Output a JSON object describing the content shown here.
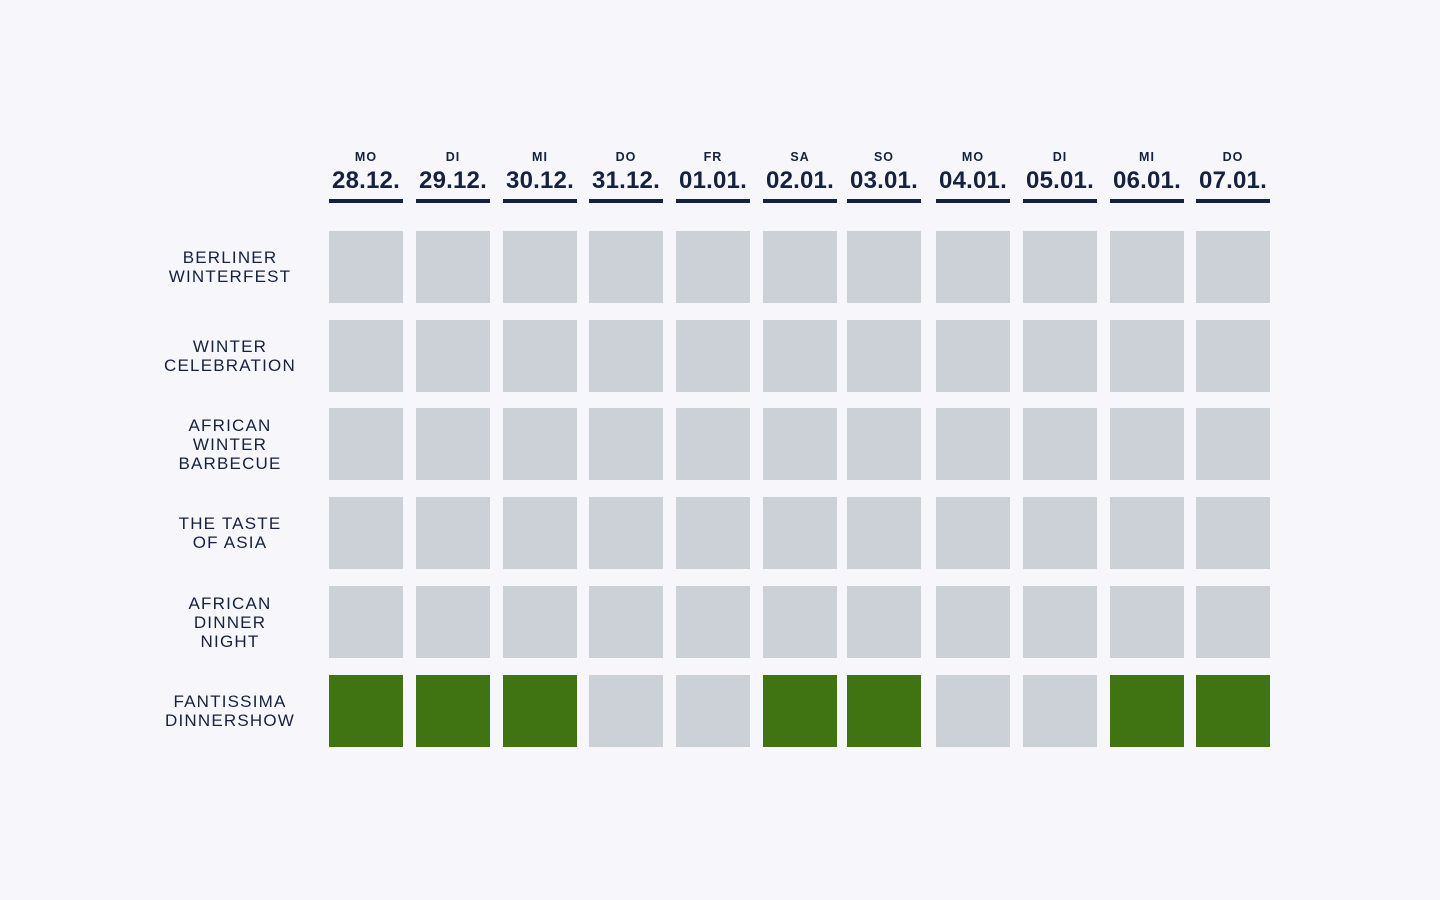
{
  "colors": {
    "available": "#407413",
    "unavailable": "#ccd0d7",
    "text": "#14213f",
    "background": "#f7f6fb"
  },
  "days": [
    {
      "dow": "MO",
      "date": "28.12."
    },
    {
      "dow": "DI",
      "date": "29.12."
    },
    {
      "dow": "MI",
      "date": "30.12."
    },
    {
      "dow": "DO",
      "date": "31.12."
    },
    {
      "dow": "FR",
      "date": "01.01."
    },
    {
      "dow": "SA",
      "date": "02.01."
    },
    {
      "dow": "SO",
      "date": "03.01."
    },
    {
      "dow": "MO",
      "date": "04.01."
    },
    {
      "dow": "DI",
      "date": "05.01."
    },
    {
      "dow": "MI",
      "date": "06.01."
    },
    {
      "dow": "DO",
      "date": "07.01."
    }
  ],
  "events": [
    {
      "name": "BERLINER\nWINTERFEST",
      "availability": [
        false,
        false,
        false,
        false,
        false,
        false,
        false,
        false,
        false,
        false,
        false
      ]
    },
    {
      "name": "WINTER\nCELEBRATION",
      "availability": [
        false,
        false,
        false,
        false,
        false,
        false,
        false,
        false,
        false,
        false,
        false
      ]
    },
    {
      "name": "AFRICAN\nWINTER\nBARBECUE",
      "availability": [
        false,
        false,
        false,
        false,
        false,
        false,
        false,
        false,
        false,
        false,
        false
      ]
    },
    {
      "name": "THE TASTE\nOF ASIA",
      "availability": [
        false,
        false,
        false,
        false,
        false,
        false,
        false,
        false,
        false,
        false,
        false
      ]
    },
    {
      "name": "AFRICAN\nDINNER\nNIGHT",
      "availability": [
        false,
        false,
        false,
        false,
        false,
        false,
        false,
        false,
        false,
        false,
        false
      ]
    },
    {
      "name": "FANTISSIMA\nDINNERSHOW",
      "availability": [
        true,
        true,
        true,
        false,
        false,
        true,
        true,
        false,
        false,
        true,
        true
      ]
    }
  ]
}
